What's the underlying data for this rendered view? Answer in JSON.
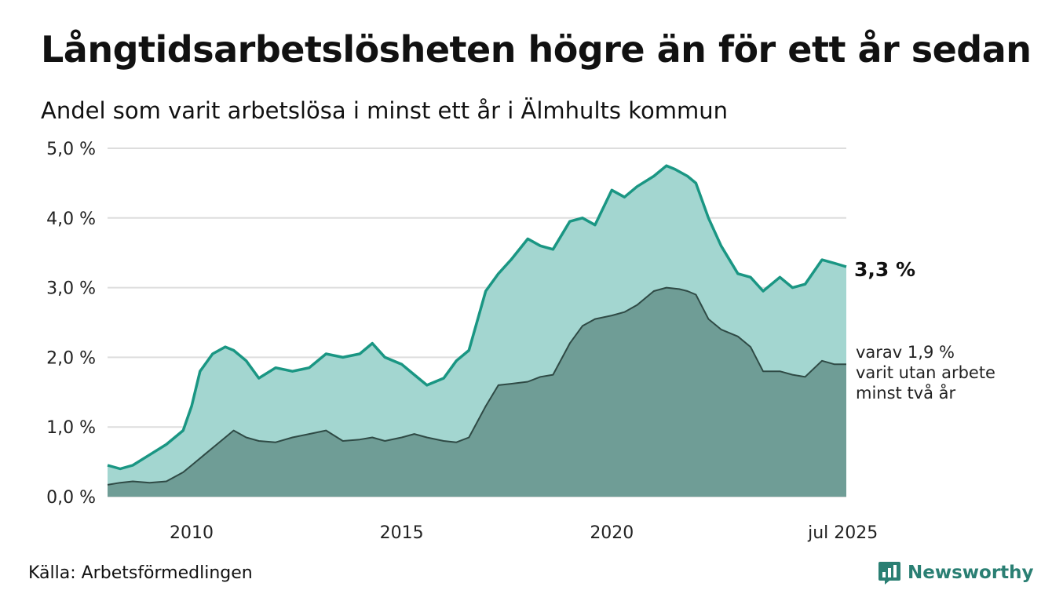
{
  "title": "Långtidsarbetslösheten högre än för ett år sedan",
  "subtitle": "Andel som varit arbetslösa i minst ett år i Älmhults kommun",
  "source": "Källa: Arbetsförmedlingen",
  "brand": {
    "name": "Newsworthy",
    "icon": "bar-chart-speech-bubble-icon",
    "color": "#2a7f73"
  },
  "colors": {
    "total_line": "#1a9683",
    "total_fill": "#a3d6d0",
    "long_fill": "#6f9d96",
    "long_line": "#2f4a45",
    "grid": "#dddddd"
  },
  "chart_data": {
    "type": "area",
    "ylim": [
      0,
      5
    ],
    "yticks": [
      0,
      1,
      2,
      3,
      4,
      5
    ],
    "ytick_labels": [
      "0,0 %",
      "1,0 %",
      "2,0 %",
      "3,0 %",
      "4,0 %",
      "5,0 %"
    ],
    "x_range": [
      2008.0,
      2025.58
    ],
    "xticks": [
      {
        "value": 2010,
        "label": "2010"
      },
      {
        "value": 2015,
        "label": "2015"
      },
      {
        "value": 2020,
        "label": "2020"
      },
      {
        "value": 2025.5,
        "label": "jul 2025"
      }
    ],
    "grid": true,
    "annotations": [
      {
        "text": "3,3 %",
        "series": 0,
        "bold": true
      },
      {
        "lines": [
          "varav 1,9 %",
          "varit utan arbete",
          "minst två år"
        ],
        "series": 1,
        "bold": false
      }
    ],
    "series": [
      {
        "x": [
          2008.0,
          2008.3,
          2008.6,
          2009.0,
          2009.4,
          2009.8,
          2010.0,
          2010.2,
          2010.5,
          2010.8,
          2011.0,
          2011.3,
          2011.6,
          2012.0,
          2012.4,
          2012.8,
          2013.2,
          2013.6,
          2014.0,
          2014.3,
          2014.6,
          2015.0,
          2015.3,
          2015.6,
          2016.0,
          2016.3,
          2016.6,
          2017.0,
          2017.3,
          2017.6,
          2018.0,
          2018.3,
          2018.6,
          2019.0,
          2019.3,
          2019.6,
          2020.0,
          2020.3,
          2020.6,
          2021.0,
          2021.3,
          2021.5,
          2021.8,
          2022.0,
          2022.3,
          2022.6,
          2023.0,
          2023.3,
          2023.6,
          2024.0,
          2024.3,
          2024.6,
          2025.0,
          2025.3,
          2025.58
        ],
        "y": [
          0.45,
          0.4,
          0.45,
          0.6,
          0.75,
          0.95,
          1.3,
          1.8,
          2.05,
          2.15,
          2.1,
          1.95,
          1.7,
          1.85,
          1.8,
          1.85,
          2.05,
          2.0,
          2.05,
          2.2,
          2.0,
          1.9,
          1.75,
          1.6,
          1.7,
          1.95,
          2.1,
          2.95,
          3.2,
          3.4,
          3.7,
          3.6,
          3.55,
          3.95,
          4.0,
          3.9,
          4.4,
          4.3,
          4.45,
          4.6,
          4.75,
          4.7,
          4.6,
          4.5,
          4.0,
          3.6,
          3.2,
          3.15,
          2.95,
          3.15,
          3.0,
          3.05,
          3.4,
          3.35,
          3.3
        ]
      },
      {
        "x": [
          2008.0,
          2008.3,
          2008.6,
          2009.0,
          2009.4,
          2009.8,
          2010.0,
          2010.3,
          2010.6,
          2010.9,
          2011.0,
          2011.3,
          2011.6,
          2012.0,
          2012.4,
          2012.8,
          2013.2,
          2013.6,
          2014.0,
          2014.3,
          2014.6,
          2015.0,
          2015.3,
          2015.6,
          2016.0,
          2016.3,
          2016.6,
          2017.0,
          2017.3,
          2017.6,
          2018.0,
          2018.3,
          2018.6,
          2019.0,
          2019.3,
          2019.6,
          2020.0,
          2020.3,
          2020.6,
          2021.0,
          2021.3,
          2021.6,
          2021.8,
          2022.0,
          2022.3,
          2022.6,
          2023.0,
          2023.3,
          2023.6,
          2024.0,
          2024.3,
          2024.6,
          2025.0,
          2025.3,
          2025.58
        ],
        "y": [
          0.17,
          0.2,
          0.22,
          0.2,
          0.22,
          0.35,
          0.45,
          0.6,
          0.75,
          0.9,
          0.95,
          0.85,
          0.8,
          0.78,
          0.85,
          0.9,
          0.95,
          0.8,
          0.82,
          0.85,
          0.8,
          0.85,
          0.9,
          0.85,
          0.8,
          0.78,
          0.85,
          1.3,
          1.6,
          1.62,
          1.65,
          1.72,
          1.75,
          2.2,
          2.45,
          2.55,
          2.6,
          2.65,
          2.75,
          2.95,
          3.0,
          2.98,
          2.95,
          2.9,
          2.55,
          2.4,
          2.3,
          2.15,
          1.8,
          1.8,
          1.75,
          1.72,
          1.95,
          1.9,
          1.9
        ]
      }
    ]
  }
}
